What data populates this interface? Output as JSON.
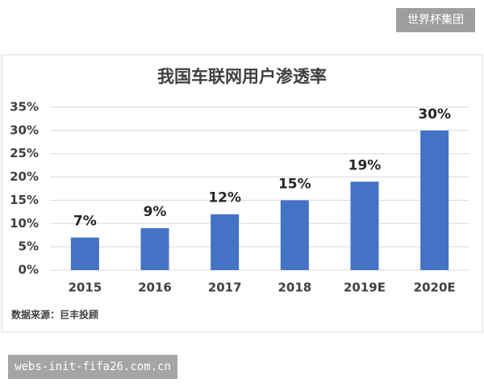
{
  "badge": "世界杯集团",
  "watermark": "webs-init-fifa26.com.cn",
  "chart_data": {
    "type": "bar",
    "title": "我国车联网用户渗透率",
    "categories": [
      "2015",
      "2016",
      "2017",
      "2018",
      "2019E",
      "2020E"
    ],
    "values": [
      7,
      9,
      12,
      15,
      19,
      30
    ],
    "value_labels": [
      "7%",
      "9%",
      "12%",
      "15%",
      "19%",
      "30%"
    ],
    "color": "#4472c4",
    "ylim": [
      0,
      35
    ],
    "yticks": [
      {
        "value": 0,
        "label": "0%"
      },
      {
        "value": 5,
        "label": "5%"
      },
      {
        "value": 10,
        "label": "10%"
      },
      {
        "value": 15,
        "label": "15%"
      },
      {
        "value": 20,
        "label": "20%"
      },
      {
        "value": 25,
        "label": "25%"
      },
      {
        "value": 30,
        "label": "30%"
      },
      {
        "value": 35,
        "label": "35%"
      }
    ],
    "grid": true,
    "source": "数据来源：巨丰投顾"
  }
}
